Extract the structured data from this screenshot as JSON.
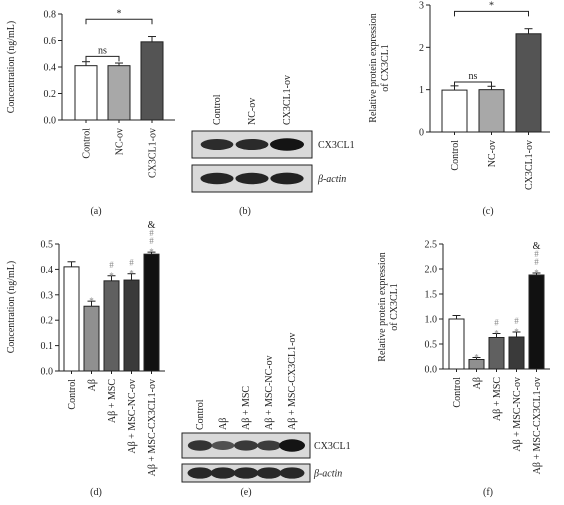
{
  "colors": {
    "control": "#ffffff",
    "nc_ov": "#a8a8a8",
    "cx3cl1_ov": "#545454",
    "abeta": "#909090",
    "abeta_msc": "#606060",
    "abeta_msc_nc": "#3a3a3a",
    "abeta_msc_cx3cl1": "#111111",
    "stroke": "#222222",
    "sig_gray": "#888888"
  },
  "chart_data": [
    {
      "id": "a",
      "type": "bar",
      "panel_label": "(a)",
      "ylabel": "Concentration (ng/mL)",
      "ylim": [
        0,
        0.8
      ],
      "yticks": [
        "0.0",
        "0.2",
        "0.4",
        "0.6",
        "0.8"
      ],
      "categories": [
        "Control",
        "NC-ov",
        "CX3CL1-ov"
      ],
      "values": [
        0.41,
        0.41,
        0.59
      ],
      "errors": [
        0.03,
        0.02,
        0.04
      ],
      "fill_keys": [
        "control",
        "nc_ov",
        "cx3cl1_ov"
      ],
      "brackets": [
        {
          "from": 0,
          "to": 1,
          "label": "ns",
          "y": 0.48
        },
        {
          "from": 0,
          "to": 2,
          "label": "*",
          "y": 0.76
        }
      ]
    },
    {
      "id": "c",
      "type": "bar",
      "panel_label": "(c)",
      "ylabel": "Relative protein expression of CX3CL1",
      "ylabel_lines": [
        "Relative protein expression",
        "of CX3CL1"
      ],
      "ylim": [
        0,
        3
      ],
      "yticks": [
        "0",
        "1",
        "2",
        "3"
      ],
      "categories": [
        "Control",
        "NC-ov",
        "CX3CL1-ov"
      ],
      "values": [
        0.99,
        1.0,
        2.32
      ],
      "errors": [
        0.1,
        0.08,
        0.12
      ],
      "fill_keys": [
        "control",
        "nc_ov",
        "cx3cl1_ov"
      ],
      "brackets": [
        {
          "from": 0,
          "to": 1,
          "label": "ns",
          "y": 1.18
        },
        {
          "from": 0,
          "to": 2,
          "label": "*",
          "y": 2.85
        }
      ]
    },
    {
      "id": "d",
      "type": "bar",
      "panel_label": "(d)",
      "ylabel": "Concentration (ng/mL)",
      "ylim": [
        0,
        0.5
      ],
      "yticks": [
        "0.0",
        "0.1",
        "0.2",
        "0.3",
        "0.4",
        "0.5"
      ],
      "categories": [
        "Control",
        "Aβ",
        "Aβ + MSC",
        "Aβ + MSC-NC-ov",
        "Aβ + MSC-CX3CL1-ov"
      ],
      "values": [
        0.41,
        0.255,
        0.355,
        0.358,
        0.46
      ],
      "errors": [
        0.02,
        0.02,
        0.02,
        0.025,
        0.008
      ],
      "fill_keys": [
        "control",
        "abeta",
        "abeta_msc",
        "abeta_msc_nc",
        "abeta_msc_cx3cl1"
      ],
      "marks": [
        [],
        [
          "*"
        ],
        [
          "*",
          "#"
        ],
        [
          "*",
          "#"
        ],
        [
          "*",
          "#",
          "#",
          "&"
        ]
      ]
    },
    {
      "id": "f",
      "type": "bar",
      "panel_label": "(f)",
      "ylabel": "Relative protein expression of CX3CL1",
      "ylabel_lines": [
        "Relative protein expression",
        "of CX3CL1"
      ],
      "ylim": [
        0,
        2.5
      ],
      "yticks": [
        "0.0",
        "0.5",
        "1.0",
        "1.5",
        "2.0",
        "2.5"
      ],
      "categories": [
        "Control",
        "Aβ",
        "Aβ + MSC",
        "Aβ + MSC-NC-ov",
        "Aβ + MSC-CX3CL1-ov"
      ],
      "values": [
        1.0,
        0.19,
        0.63,
        0.64,
        1.88
      ],
      "errors": [
        0.07,
        0.04,
        0.08,
        0.1,
        0.04
      ],
      "fill_keys": [
        "control",
        "abeta",
        "abeta_msc",
        "abeta_msc_nc",
        "abeta_msc_cx3cl1"
      ],
      "marks": [
        [],
        [
          "*"
        ],
        [
          "*",
          "#"
        ],
        [
          "*",
          "#"
        ],
        [
          "*",
          "#",
          "#",
          "&"
        ]
      ]
    }
  ],
  "blots": [
    {
      "id": "b",
      "panel_label": "(b)",
      "lanes": [
        "Control",
        "NC-ov",
        "CX3CL1-ov"
      ],
      "rows": [
        {
          "label": "CX3CL1",
          "intensity": [
            0.78,
            0.8,
            1.0
          ]
        },
        {
          "label": "β-actin",
          "intensity": [
            0.85,
            0.85,
            0.88
          ]
        }
      ]
    },
    {
      "id": "e",
      "panel_label": "(e)",
      "lanes": [
        "Control",
        "Aβ",
        "Aβ + MSC",
        "Aβ + MSC-NC-ov",
        "Aβ + MSC-CX3CL1-ov"
      ],
      "rows": [
        {
          "label": "CX3CL1",
          "intensity": [
            0.72,
            0.45,
            0.66,
            0.64,
            1.0
          ]
        },
        {
          "label": "β-actin",
          "intensity": [
            0.82,
            0.82,
            0.82,
            0.82,
            0.82
          ]
        }
      ]
    }
  ]
}
